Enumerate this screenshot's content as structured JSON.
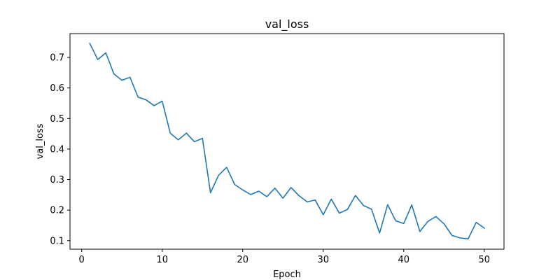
{
  "chart_data": {
    "type": "line",
    "title": "val_loss",
    "xlabel": "Epoch",
    "ylabel": "val_loss",
    "xlim": [
      -1.45,
      52.45
    ],
    "ylim": [
      0.072,
      0.778
    ],
    "xticks": [
      0,
      10,
      20,
      30,
      40,
      50
    ],
    "yticks": [
      0.1,
      0.2,
      0.3,
      0.4,
      0.5,
      0.6,
      0.7
    ],
    "grid": false,
    "series": [
      {
        "color": "#1f77b4",
        "x": [
          1,
          2,
          3,
          4,
          5,
          6,
          7,
          8,
          9,
          10,
          11,
          12,
          13,
          14,
          15,
          16,
          17,
          18,
          19,
          20,
          21,
          22,
          23,
          24,
          25,
          26,
          27,
          28,
          29,
          30,
          31,
          32,
          33,
          34,
          35,
          36,
          37,
          38,
          39,
          40,
          41,
          42,
          43,
          44,
          45,
          46,
          47,
          48,
          49,
          50
        ],
        "y": [
          0.746,
          0.693,
          0.715,
          0.646,
          0.625,
          0.635,
          0.57,
          0.561,
          0.542,
          0.557,
          0.452,
          0.43,
          0.452,
          0.424,
          0.435,
          0.257,
          0.314,
          0.34,
          0.284,
          0.266,
          0.251,
          0.262,
          0.244,
          0.272,
          0.239,
          0.274,
          0.247,
          0.227,
          0.233,
          0.185,
          0.236,
          0.19,
          0.202,
          0.248,
          0.215,
          0.203,
          0.125,
          0.218,
          0.165,
          0.156,
          0.217,
          0.13,
          0.163,
          0.179,
          0.155,
          0.117,
          0.109,
          0.106,
          0.16,
          0.141
        ]
      }
    ]
  }
}
